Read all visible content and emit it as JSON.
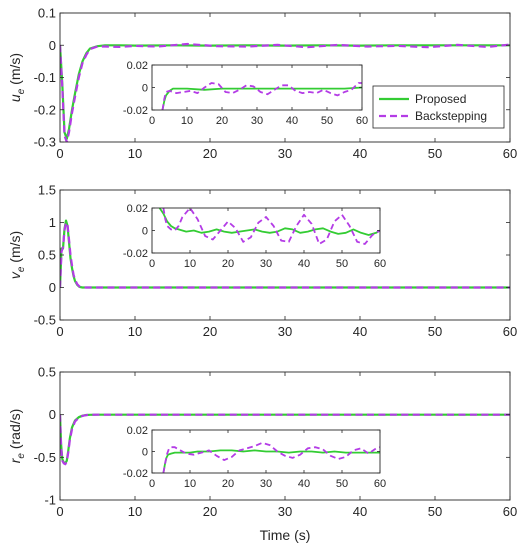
{
  "colors": {
    "proposed": "#33cc33",
    "backstepping": "#b43ce6",
    "axis": "#262626",
    "grid": "#e6e6e6"
  },
  "chart_data": [
    {
      "type": "line",
      "ylabel": "u_e (m/s)",
      "ylabel_main": "u",
      "ylabel_sub": "e",
      "ylabel_unit": " (m/s)",
      "xlim": [
        0,
        60
      ],
      "ylim": [
        -0.3,
        0.1
      ],
      "xticks": [
        0,
        10,
        20,
        30,
        40,
        50,
        60
      ],
      "yticks": [
        -0.3,
        -0.2,
        -0.1,
        0,
        0.1
      ],
      "yticklabels": [
        "-0.3",
        "-0.2",
        "-0.1",
        "0",
        "0.1"
      ],
      "legend": {
        "placement": "right",
        "entries": [
          "Proposed",
          "Backstepping"
        ]
      },
      "series": [
        {
          "name": "Proposed",
          "style": "solid",
          "x": [
            0,
            0.3,
            0.6,
            0.9,
            1.2,
            1.6,
            2,
            2.5,
            3,
            3.5,
            4,
            5,
            6,
            8,
            10,
            15,
            20,
            25,
            30,
            35,
            40,
            45,
            50,
            55,
            60
          ],
          "y": [
            0,
            -0.12,
            -0.27,
            -0.29,
            -0.26,
            -0.2,
            -0.15,
            -0.09,
            -0.05,
            -0.025,
            -0.01,
            -0.003,
            0,
            0,
            -0.001,
            0,
            -0.001,
            0,
            -0.001,
            0,
            -0.001,
            0,
            0,
            0,
            0
          ]
        },
        {
          "name": "Backstepping",
          "style": "dashed",
          "x": [
            0,
            0.3,
            0.6,
            0.9,
            1.2,
            1.6,
            2,
            2.5,
            3,
            3.5,
            4,
            5,
            6,
            8,
            10,
            13,
            17,
            21,
            25,
            29,
            33,
            37,
            41,
            45,
            49,
            53,
            57,
            60
          ],
          "y": [
            0,
            -0.13,
            -0.28,
            -0.3,
            -0.27,
            -0.21,
            -0.16,
            -0.1,
            -0.055,
            -0.03,
            -0.012,
            -0.004,
            -0.004,
            -0.005,
            -0.002,
            -0.004,
            0.004,
            -0.003,
            -0.004,
            0.001,
            -0.006,
            0.001,
            -0.004,
            -0.002,
            -0.006,
            0.001,
            -0.005,
            0.002
          ]
        }
      ],
      "inset": {
        "xlim": [
          0,
          60
        ],
        "ylim": [
          -0.02,
          0.02
        ],
        "xticks": [
          0,
          10,
          20,
          30,
          40,
          50,
          60
        ],
        "yticks": [
          -0.02,
          0,
          0.02
        ],
        "yticklabels": [
          "-0.02",
          "0",
          "0.02"
        ],
        "series": [
          {
            "name": "Proposed",
            "style": "solid",
            "x": [
              3,
              3.5,
              4,
              5,
              6,
              8,
              10,
              15,
              20,
              25,
              30,
              35,
              40,
              45,
              50,
              55,
              60
            ],
            "y": [
              -0.02,
              -0.012,
              -0.007,
              -0.003,
              -0.001,
              -0.001,
              -0.001,
              -0.002,
              -0.001,
              -0.001,
              -0.001,
              -0.001,
              -0.001,
              -0.001,
              -0.001,
              -0.001,
              0
            ]
          },
          {
            "name": "Backstepping",
            "style": "dashed",
            "x": [
              3,
              3.5,
              4,
              5,
              6,
              7,
              9,
              11,
              13,
              15,
              17,
              19,
              21,
              23,
              25,
              27,
              29,
              31,
              33,
              35,
              37,
              39,
              41,
              43,
              45,
              47,
              49,
              51,
              53,
              55,
              57,
              59,
              60
            ],
            "y": [
              -0.02,
              -0.01,
              -0.004,
              -0.003,
              -0.004,
              -0.005,
              -0.004,
              -0.003,
              -0.005,
              0,
              0.004,
              0.003,
              -0.004,
              -0.005,
              -0.002,
              0.002,
              0.001,
              -0.004,
              -0.006,
              -0.002,
              0.002,
              0.002,
              -0.003,
              -0.005,
              -0.004,
              -0.005,
              -0.002,
              -0.005,
              -0.007,
              -0.004,
              -0.002,
              0.004,
              0.004
            ]
          }
        ]
      }
    },
    {
      "type": "line",
      "ylabel": "v_e (m/s)",
      "ylabel_main": "v",
      "ylabel_sub": "e",
      "ylabel_unit": " (m/s)",
      "xlim": [
        0,
        60
      ],
      "ylim": [
        -0.5,
        1.5
      ],
      "xticks": [
        0,
        10,
        20,
        30,
        40,
        50,
        60
      ],
      "yticks": [
        -0.5,
        0,
        0.5,
        1,
        1.5
      ],
      "yticklabels": [
        "-0.5",
        "0",
        "0.5",
        "1",
        "1.5"
      ],
      "series": [
        {
          "name": "Proposed",
          "style": "solid",
          "x": [
            0,
            0.2,
            0.4,
            0.6,
            0.8,
            1.0,
            1.2,
            1.4,
            1.6,
            1.8,
            2.0,
            2.3,
            2.6,
            3,
            3.5,
            4,
            5,
            6,
            10,
            20,
            30,
            40,
            50,
            60
          ],
          "y": [
            0,
            0.6,
            0.6,
            0.9,
            1.03,
            0.95,
            0.7,
            0.45,
            0.3,
            0.18,
            0.1,
            0.04,
            0.01,
            0,
            0,
            0,
            0,
            0,
            0,
            0,
            0,
            0,
            0,
            0
          ]
        },
        {
          "name": "Backstepping",
          "style": "dashed",
          "x": [
            0,
            0.2,
            0.4,
            0.6,
            0.8,
            1.0,
            1.2,
            1.4,
            1.6,
            1.8,
            2.0,
            2.3,
            2.6,
            3,
            3.5,
            4,
            5,
            6,
            10,
            20,
            30,
            40,
            50,
            60
          ],
          "y": [
            0,
            0.55,
            0.62,
            0.88,
            1.0,
            0.97,
            0.74,
            0.5,
            0.34,
            0.2,
            0.12,
            0.05,
            0.015,
            0.002,
            0,
            0,
            0,
            0,
            0,
            0,
            0,
            0,
            0,
            0
          ]
        }
      ],
      "inset": {
        "xlim": [
          0,
          60
        ],
        "ylim": [
          -0.02,
          0.02
        ],
        "xticks": [
          0,
          10,
          20,
          30,
          40,
          50,
          60
        ],
        "yticks": [
          -0.02,
          0,
          0.02
        ],
        "yticklabels": [
          "-0.02",
          "0",
          "0.02"
        ],
        "series": [
          {
            "name": "Proposed",
            "style": "solid",
            "x": [
              2,
              3,
              4,
              5,
              6,
              7,
              9,
              11,
              13,
              15,
              17,
              19,
              21,
              23,
              25,
              27,
              29,
              31,
              33,
              35,
              37,
              39,
              41,
              43,
              45,
              47,
              49,
              51,
              53,
              55,
              57,
              59,
              60
            ],
            "y": [
              0.02,
              0.015,
              0.008,
              0.004,
              0.002,
              0.001,
              -0.001,
              0,
              -0.002,
              -0.001,
              0.001,
              -0.001,
              -0.002,
              -0.001,
              0,
              0.001,
              -0.001,
              -0.002,
              -0.001,
              0.002,
              0.001,
              -0.002,
              -0.001,
              0.001,
              0.002,
              -0.001,
              -0.003,
              -0.002,
              0.001,
              -0.002,
              -0.004,
              -0.002,
              0
            ]
          },
          {
            "name": "Backstepping",
            "style": "dashed",
            "x": [
              3,
              3.5,
              4,
              5,
              6,
              7,
              8,
              10,
              12,
              14,
              16,
              18,
              20,
              22,
              24,
              26,
              28,
              30,
              32,
              34,
              36,
              38,
              40,
              42,
              44,
              46,
              48,
              50,
              52,
              54,
              56,
              58,
              60
            ],
            "y": [
              0.02,
              0.01,
              0.004,
              0.001,
              0,
              0.004,
              0.012,
              0.02,
              0.01,
              -0.005,
              -0.008,
              0.0,
              0.008,
              0.002,
              -0.01,
              -0.006,
              0.007,
              0.012,
              0.004,
              -0.009,
              -0.01,
              0.004,
              0.014,
              0.006,
              -0.012,
              -0.008,
              0.008,
              0.014,
              0.004,
              -0.01,
              -0.012,
              -0.004,
              0.0
            ]
          }
        ]
      }
    },
    {
      "type": "line",
      "ylabel": "r_e (rad/s)",
      "ylabel_main": "r",
      "ylabel_sub": "e",
      "ylabel_unit": " (rad/s)",
      "xlabel": "Time (s)",
      "xlim": [
        0,
        60
      ],
      "ylim": [
        -1,
        0.5
      ],
      "xticks": [
        0,
        10,
        20,
        30,
        40,
        50,
        60
      ],
      "yticks": [
        -1,
        -0.5,
        0,
        0.5
      ],
      "yticklabels": [
        "-1",
        "-0.5",
        "0",
        "0.5"
      ],
      "series": [
        {
          "name": "Proposed",
          "style": "solid",
          "x": [
            0,
            0.15,
            0.3,
            0.5,
            0.7,
            0.9,
            1.1,
            1.3,
            1.6,
            2,
            2.5,
            3,
            3.5,
            4,
            5,
            6,
            10,
            20,
            30,
            40,
            50,
            60
          ],
          "y": [
            0,
            -0.35,
            -0.52,
            -0.56,
            -0.57,
            -0.54,
            -0.42,
            -0.28,
            -0.15,
            -0.07,
            -0.03,
            -0.012,
            -0.004,
            -0.001,
            0,
            0,
            0,
            0,
            0,
            0,
            0,
            0
          ]
        },
        {
          "name": "Backstepping",
          "style": "dashed",
          "x": [
            0,
            0.15,
            0.3,
            0.5,
            0.7,
            0.9,
            1.1,
            1.3,
            1.6,
            2,
            2.5,
            3,
            3.5,
            4,
            5,
            6,
            10,
            20,
            30,
            40,
            50,
            60
          ],
          "y": [
            0,
            -0.38,
            -0.54,
            -0.57,
            -0.58,
            -0.55,
            -0.44,
            -0.3,
            -0.17,
            -0.08,
            -0.035,
            -0.014,
            -0.005,
            -0.002,
            0,
            0,
            0,
            0,
            0,
            0,
            0,
            0
          ]
        }
      ],
      "inset": {
        "xlim": [
          0,
          60
        ],
        "ylim": [
          -0.02,
          0.02
        ],
        "xticks": [
          0,
          10,
          20,
          30,
          40,
          50,
          60
        ],
        "yticks": [
          -0.02,
          0,
          0.02
        ],
        "yticklabels": [
          "-0.02",
          "0",
          "0.02"
        ],
        "series": [
          {
            "name": "Proposed",
            "style": "solid",
            "x": [
              3,
              3.4,
              3.8,
              4.2,
              5,
              6,
              8,
              10,
              12,
              15,
              18,
              21,
              24,
              27,
              30,
              33,
              36,
              39,
              42,
              45,
              48,
              51,
              54,
              57,
              60
            ],
            "y": [
              -0.02,
              -0.012,
              -0.006,
              -0.003,
              -0.002,
              -0.001,
              -0.001,
              -0.001,
              0,
              0,
              0.001,
              0.001,
              0,
              0.001,
              0,
              0,
              -0.001,
              0,
              0,
              -0.001,
              0,
              -0.001,
              -0.001,
              -0.001,
              -0.001
            ]
          },
          {
            "name": "Backstepping",
            "style": "dashed",
            "x": [
              3,
              3.5,
              4,
              4.5,
              5,
              6,
              7,
              9,
              11,
              13,
              15,
              17,
              19,
              21,
              23,
              25,
              27,
              29,
              31,
              33,
              35,
              37,
              39,
              41,
              43,
              45,
              47,
              49,
              51,
              53,
              55,
              57,
              59,
              60
            ],
            "y": [
              -0.02,
              -0.01,
              -0.002,
              0.003,
              0.004,
              0.004,
              0.002,
              -0.002,
              -0.003,
              -0.001,
              0.001,
              -0.004,
              -0.008,
              -0.005,
              0.001,
              0.003,
              0.005,
              0.008,
              0.006,
              0.0,
              -0.004,
              -0.006,
              -0.003,
              0.003,
              0.004,
              0.002,
              -0.004,
              -0.007,
              -0.005,
              0.001,
              0.003,
              -0.002,
              0.003,
              0.004
            ]
          }
        ]
      }
    }
  ]
}
